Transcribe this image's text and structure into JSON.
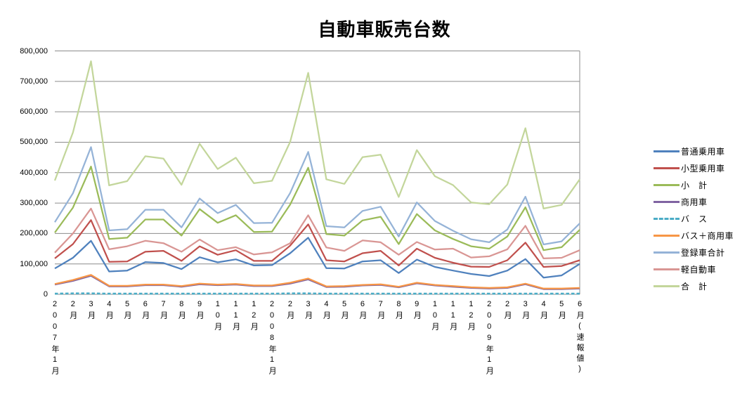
{
  "chart_data": {
    "type": "line",
    "title": "自動車販売台数",
    "xlabel": "",
    "ylabel": "",
    "ylim": [
      0,
      800000
    ],
    "y_tick_step": 100000,
    "y_ticks": [
      "0",
      "100,000",
      "200,000",
      "300,000",
      "400,000",
      "500,000",
      "600,000",
      "700,000",
      "800,000"
    ],
    "grid": true,
    "legend_position": "right",
    "categories": [
      "2007年1月",
      "2月",
      "3月",
      "4月",
      "5月",
      "6月",
      "7月",
      "8月",
      "9月",
      "10月",
      "11月",
      "12月",
      "2008年1月",
      "2月",
      "3月",
      "4月",
      "5月",
      "6月",
      "7月",
      "8月",
      "9月",
      "10月",
      "11月",
      "12月",
      "2009年1月",
      "2月",
      "3月",
      "4月",
      "5月",
      "6月(速報値)"
    ],
    "series": [
      {
        "name": "普通乗用車",
        "color": "#4F81BD",
        "style": "solid",
        "values": [
          85000,
          120000,
          176000,
          75000,
          78000,
          106000,
          103000,
          83000,
          122000,
          105000,
          115000,
          95000,
          96000,
          135000,
          186000,
          86000,
          85000,
          108000,
          112000,
          70000,
          114000,
          90000,
          78000,
          67000,
          60000,
          78000,
          116000,
          55000,
          62000,
          100000
        ]
      },
      {
        "name": "小型乗用車",
        "color": "#C0504D",
        "style": "solid",
        "values": [
          118000,
          165000,
          244000,
          107000,
          108000,
          140000,
          143000,
          110000,
          158000,
          130000,
          145000,
          110000,
          110000,
          160000,
          230000,
          112000,
          108000,
          135000,
          143000,
          95000,
          150000,
          120000,
          104000,
          91000,
          90000,
          112000,
          170000,
          90000,
          93000,
          112000
        ]
      },
      {
        "name": "小　計",
        "color": "#9BBB59",
        "style": "solid",
        "values": [
          203000,
          285000,
          420000,
          182000,
          186000,
          246000,
          246000,
          193000,
          280000,
          235000,
          260000,
          205000,
          206000,
          295000,
          416000,
          198000,
          193000,
          243000,
          255000,
          165000,
          264000,
          210000,
          182000,
          158000,
          150000,
          190000,
          286000,
          145000,
          155000,
          212000
        ]
      },
      {
        "name": "商用車",
        "color": "#8064A2",
        "style": "solid",
        "values": [
          32000,
          44000,
          61000,
          26000,
          26000,
          30000,
          30000,
          25000,
          33000,
          30000,
          32000,
          27000,
          27000,
          35000,
          49000,
          24000,
          25000,
          29000,
          31000,
          23000,
          36000,
          29000,
          25000,
          21000,
          19000,
          21000,
          33000,
          17000,
          17000,
          19000
        ]
      },
      {
        "name": "バ　ス",
        "color": "#4BACC6",
        "style": "dashed",
        "values": [
          2000,
          3000,
          3000,
          2000,
          2000,
          2000,
          2000,
          2000,
          2000,
          2000,
          2000,
          2000,
          2000,
          3000,
          3000,
          2000,
          2000,
          2000,
          2000,
          2000,
          2000,
          2000,
          2000,
          2000,
          2000,
          2000,
          2000,
          2000,
          2000,
          2000
        ]
      },
      {
        "name": "バス＋商用車",
        "color": "#F79646",
        "style": "solid",
        "values": [
          34000,
          47000,
          64000,
          28000,
          28000,
          32000,
          32000,
          27000,
          35000,
          32000,
          34000,
          29000,
          29000,
          38000,
          52000,
          26000,
          27000,
          31000,
          33000,
          25000,
          38000,
          31000,
          27000,
          23000,
          21000,
          23000,
          35000,
          19000,
          19000,
          21000
        ]
      },
      {
        "name": "登録車合計",
        "color": "#95B3D7",
        "style": "solid",
        "values": [
          237000,
          332000,
          484000,
          210000,
          214000,
          278000,
          278000,
          220000,
          315000,
          267000,
          294000,
          234000,
          235000,
          333000,
          468000,
          224000,
          220000,
          274000,
          288000,
          190000,
          302000,
          241000,
          209000,
          181000,
          171000,
          213000,
          321000,
          164000,
          174000,
          233000
        ]
      },
      {
        "name": "軽自動車",
        "color": "#D99694",
        "style": "solid",
        "values": [
          137000,
          200000,
          282000,
          148000,
          158000,
          176000,
          168000,
          140000,
          180000,
          145000,
          155000,
          131000,
          138000,
          168000,
          260000,
          154000,
          143000,
          177000,
          171000,
          130000,
          172000,
          147000,
          150000,
          121000,
          125000,
          148000,
          225000,
          118000,
          120000,
          145000
        ]
      },
      {
        "name": "合　計",
        "color": "#C3D69B",
        "style": "solid",
        "values": [
          374000,
          532000,
          766000,
          358000,
          372000,
          454000,
          446000,
          360000,
          495000,
          412000,
          449000,
          365000,
          373000,
          501000,
          728000,
          378000,
          363000,
          451000,
          459000,
          320000,
          474000,
          388000,
          359000,
          302000,
          296000,
          361000,
          546000,
          282000,
          294000,
          378000
        ]
      }
    ],
    "gridline_color": "#8C8C8C"
  }
}
